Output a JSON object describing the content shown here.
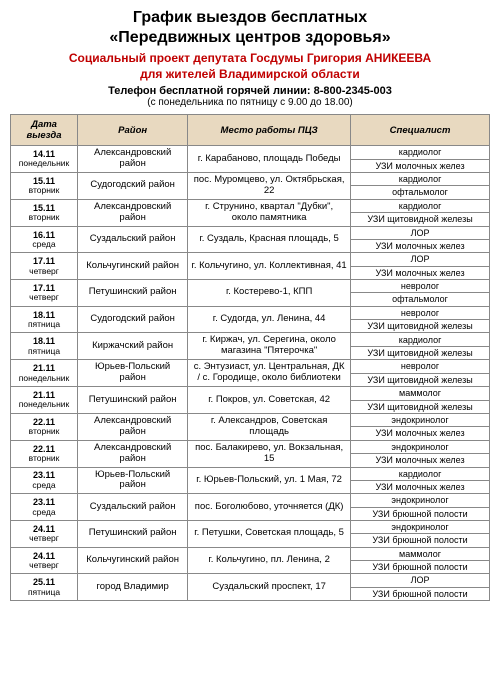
{
  "header": {
    "title_line1": "График выездов бесплатных",
    "title_line2": "«Передвижных центров здоровья»",
    "subtitle_line1": "Социальный проект депутата Госдумы Григория АНИКЕЕВА",
    "subtitle_line2": "для жителей Владимирской области",
    "phone_label": "Телефон бесплатной горячей линии: 8-800-2345-003",
    "hours": "(с понедельника по пятницу с 9.00 до 18.00)"
  },
  "columns": [
    "Дата выезда",
    "Район",
    "Место работы ПЦЗ",
    "Специалист"
  ],
  "rows": [
    {
      "date": "14.11",
      "day": "понедельник",
      "district": "Александровский район",
      "place": "г. Карабаново, площадь Победы",
      "specs": [
        "кардиолог",
        "УЗИ молочных желез"
      ]
    },
    {
      "date": "15.11",
      "day": "вторник",
      "district": "Судогодский район",
      "place": "пос. Муромцево, ул. Октябрьская, 22",
      "specs": [
        "кардиолог",
        "офтальмолог"
      ]
    },
    {
      "date": "15.11",
      "day": "вторник",
      "district": "Александровский район",
      "place": "г. Струнино, квартал \"Дубки\", около памятника",
      "specs": [
        "кардиолог",
        "УЗИ щитовидной железы"
      ]
    },
    {
      "date": "16.11",
      "day": "среда",
      "district": "Суздальский район",
      "place": "г. Суздаль, Красная площадь, 5",
      "specs": [
        "ЛОР",
        "УЗИ молочных желез"
      ]
    },
    {
      "date": "17.11",
      "day": "четверг",
      "district": "Кольчугинский район",
      "place": "г. Кольчугино, ул. Коллективная, 41",
      "specs": [
        "ЛОР",
        "УЗИ молочных желез"
      ]
    },
    {
      "date": "17.11",
      "day": "четверг",
      "district": "Петушинский район",
      "place": "г. Костерево-1, КПП",
      "specs": [
        "невролог",
        "офтальмолог"
      ]
    },
    {
      "date": "18.11",
      "day": "пятница",
      "district": "Судогодский район",
      "place": "г. Судогда, ул. Ленина, 44",
      "specs": [
        "невролог",
        "УЗИ щитовидной железы"
      ]
    },
    {
      "date": "18.11",
      "day": "пятница",
      "district": "Киржачский район",
      "place": "г. Киржач, ул. Серегина, около магазина \"Пятерочка\"",
      "specs": [
        "кардиолог",
        "УЗИ щитовидной железы"
      ]
    },
    {
      "date": "21.11",
      "day": "понедельник",
      "district": "Юрьев-Польский район",
      "place": "с. Энтузиаст, ул. Центральная, ДК / с. Городище, около библиотеки",
      "specs": [
        "невролог",
        "УЗИ щитовидной железы"
      ]
    },
    {
      "date": "21.11",
      "day": "понедельник",
      "district": "Петушинский район",
      "place": "г. Покров, ул. Советская, 42",
      "specs": [
        "маммолог",
        "УЗИ щитовидной железы"
      ]
    },
    {
      "date": "22.11",
      "day": "вторник",
      "district": "Александровский район",
      "place": "г. Александров, Советская площадь",
      "specs": [
        "эндокринолог",
        "УЗИ молочных желез"
      ]
    },
    {
      "date": "22.11",
      "day": "вторник",
      "district": "Александровский район",
      "place": "пос. Балакирево, ул. Вокзальная, 15",
      "specs": [
        "эндокринолог",
        "УЗИ молочных желез"
      ]
    },
    {
      "date": "23.11",
      "day": "среда",
      "district": "Юрьев-Польский район",
      "place": "г. Юрьев-Польский, ул. 1 Мая, 72",
      "specs": [
        "кардиолог",
        "УЗИ молочных желез"
      ]
    },
    {
      "date": "23.11",
      "day": "среда",
      "district": "Суздальский район",
      "place": "пос. Боголюбово, уточняется (ДК)",
      "specs": [
        "эндокринолог",
        "УЗИ брюшной полости"
      ]
    },
    {
      "date": "24.11",
      "day": "четверг",
      "district": "Петушинский район",
      "place": "г. Петушки, Советская площадь, 5",
      "specs": [
        "эндокринолог",
        "УЗИ брюшной полости"
      ]
    },
    {
      "date": "24.11",
      "day": "четверг",
      "district": "Кольчугинский район",
      "place": "г. Кольчугино, пл. Ленина, 2",
      "specs": [
        "маммолог",
        "УЗИ брюшной полости"
      ]
    },
    {
      "date": "25.11",
      "day": "пятница",
      "district": "город Владимир",
      "place": "Суздальский проспект, 17",
      "specs": [
        "ЛОР",
        "УЗИ брюшной полости"
      ]
    }
  ]
}
